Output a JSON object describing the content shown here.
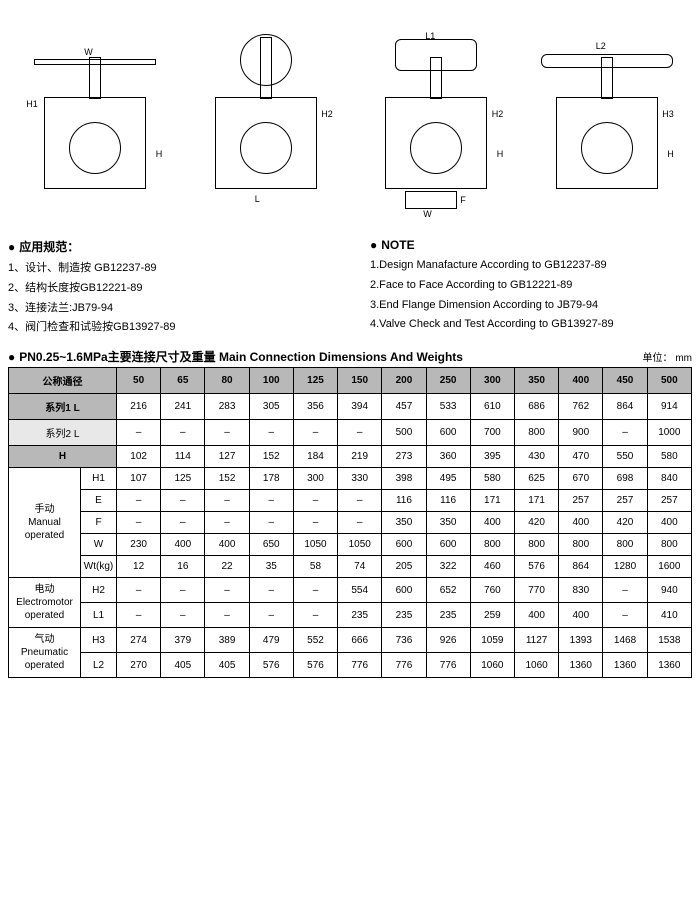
{
  "drawings": {
    "dim_labels": [
      "W",
      "H1",
      "H",
      "L",
      "H2",
      "L1",
      "H2",
      "H",
      "W",
      "F",
      "L2",
      "H3",
      "H"
    ]
  },
  "notes_cn": {
    "title": "应用规范：",
    "lines": [
      "1、设计、制造按 GB12237-89",
      "2、结构长度按GB12221-89",
      "3、连接法兰:JB79-94",
      "4、阀门检查和试验按GB13927-89"
    ]
  },
  "notes_en": {
    "title": "NOTE",
    "lines": [
      "1.Design Manafacture According to GB12237-89",
      "2.Face to Face According to GB12221-89",
      "3.End Flange Dimension According to JB79-94",
      "4.Valve Check and Test According to GB13927-89"
    ]
  },
  "table": {
    "title": "PN0.25~1.6MPa主要连接尺寸及重量 Main Connection Dimensions And Weights",
    "unit": "单位： mm",
    "header_label": "公称通径",
    "sizes": [
      "50",
      "65",
      "80",
      "100",
      "125",
      "150",
      "200",
      "250",
      "300",
      "350",
      "400",
      "450",
      "500"
    ],
    "groups": [
      {
        "label": "系列1 L",
        "span": 2,
        "values": [
          "216",
          "241",
          "283",
          "305",
          "356",
          "394",
          "457",
          "533",
          "610",
          "686",
          "762",
          "864",
          "914"
        ],
        "cls": "hdr"
      },
      {
        "label": "系列2 L",
        "span": 2,
        "values": [
          "–",
          "–",
          "–",
          "–",
          "–",
          "–",
          "500",
          "600",
          "700",
          "800",
          "900",
          "–",
          "1000"
        ],
        "cls": "lbl"
      },
      {
        "label": "H",
        "span": 2,
        "values": [
          "102",
          "114",
          "127",
          "152",
          "184",
          "219",
          "273",
          "360",
          "395",
          "430",
          "470",
          "550",
          "580"
        ],
        "cls": "hdr"
      }
    ],
    "manual": {
      "group_label": "手动\nManual\noperated",
      "rows": [
        {
          "k": "H1",
          "v": [
            "107",
            "125",
            "152",
            "178",
            "300",
            "330",
            "398",
            "495",
            "580",
            "625",
            "670",
            "698",
            "840"
          ]
        },
        {
          "k": "E",
          "v": [
            "–",
            "–",
            "–",
            "–",
            "–",
            "–",
            "116",
            "116",
            "171",
            "171",
            "257",
            "257",
            "257"
          ]
        },
        {
          "k": "F",
          "v": [
            "–",
            "–",
            "–",
            "–",
            "–",
            "–",
            "350",
            "350",
            "400",
            "420",
            "400",
            "420",
            "400"
          ]
        },
        {
          "k": "W",
          "v": [
            "230",
            "400",
            "400",
            "650",
            "1050",
            "1050",
            "600",
            "600",
            "800",
            "800",
            "800",
            "800",
            "800"
          ]
        },
        {
          "k": "Wt(kg)",
          "v": [
            "12",
            "16",
            "22",
            "35",
            "58",
            "74",
            "205",
            "322",
            "460",
            "576",
            "864",
            "1280",
            "1600"
          ]
        }
      ]
    },
    "electro": {
      "group_label": "电动\nElectromotor\noperated",
      "rows": [
        {
          "k": "H2",
          "v": [
            "–",
            "–",
            "–",
            "–",
            "–",
            "554",
            "600",
            "652",
            "760",
            "770",
            "830",
            "–",
            "940"
          ]
        },
        {
          "k": "L1",
          "v": [
            "–",
            "–",
            "–",
            "–",
            "–",
            "235",
            "235",
            "235",
            "259",
            "400",
            "400",
            "–",
            "410"
          ]
        }
      ]
    },
    "pneum": {
      "group_label": "气动\nPneumatic\noperated",
      "rows": [
        {
          "k": "H3",
          "v": [
            "274",
            "379",
            "389",
            "479",
            "552",
            "666",
            "736",
            "926",
            "1059",
            "1127",
            "1393",
            "1468",
            "1538"
          ]
        },
        {
          "k": "L2",
          "v": [
            "270",
            "405",
            "405",
            "576",
            "576",
            "776",
            "776",
            "776",
            "1060",
            "1060",
            "1360",
            "1360",
            "1360"
          ]
        }
      ]
    }
  },
  "colors": {
    "header_bg": "#b8b8b8",
    "alt_bg": "#e8e8e8",
    "border": "#000000",
    "text": "#000000"
  }
}
